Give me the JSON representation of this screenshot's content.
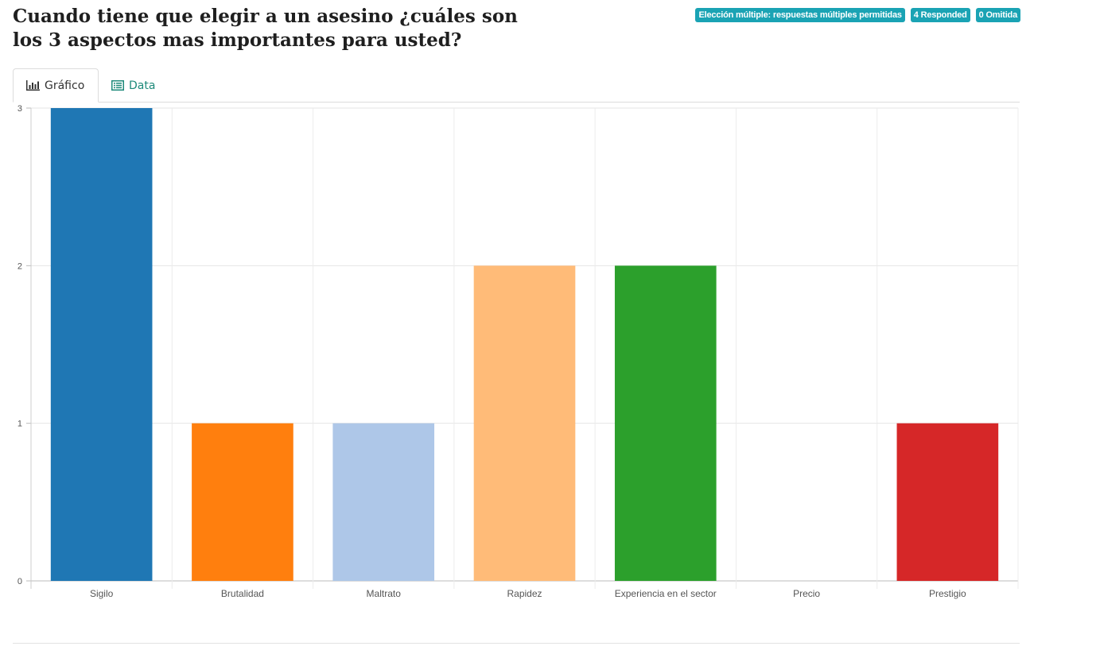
{
  "question": {
    "title": "Cuando tiene que elegir a un asesino ¿cuáles son los 3 aspectos mas importantes para usted?"
  },
  "badges": [
    {
      "label": "Elección múltiple: respuestas múltiples permitidas"
    },
    {
      "label": "4 Responded"
    },
    {
      "label": "0 Omitida"
    }
  ],
  "tabs": [
    {
      "label": "Gráfico",
      "icon": "bar-chart-icon",
      "active": true
    },
    {
      "label": "Data",
      "icon": "table-icon",
      "active": false
    }
  ],
  "chart_data": {
    "type": "bar",
    "categories": [
      "Sigilo",
      "Brutalidad",
      "Maltrato",
      "Rapidez",
      "Experiencia en el sector",
      "Precio",
      "Prestigio"
    ],
    "values": [
      3,
      1,
      1,
      2,
      2,
      0,
      1
    ],
    "colors": [
      "#1f77b4",
      "#ff7f0e",
      "#aec7e8",
      "#ffbb78",
      "#2ca02c",
      "#98df8a",
      "#d62728"
    ],
    "ylim": [
      0,
      3
    ],
    "yticks": [
      0,
      1,
      2,
      3
    ],
    "grid": true,
    "legend": "none"
  }
}
